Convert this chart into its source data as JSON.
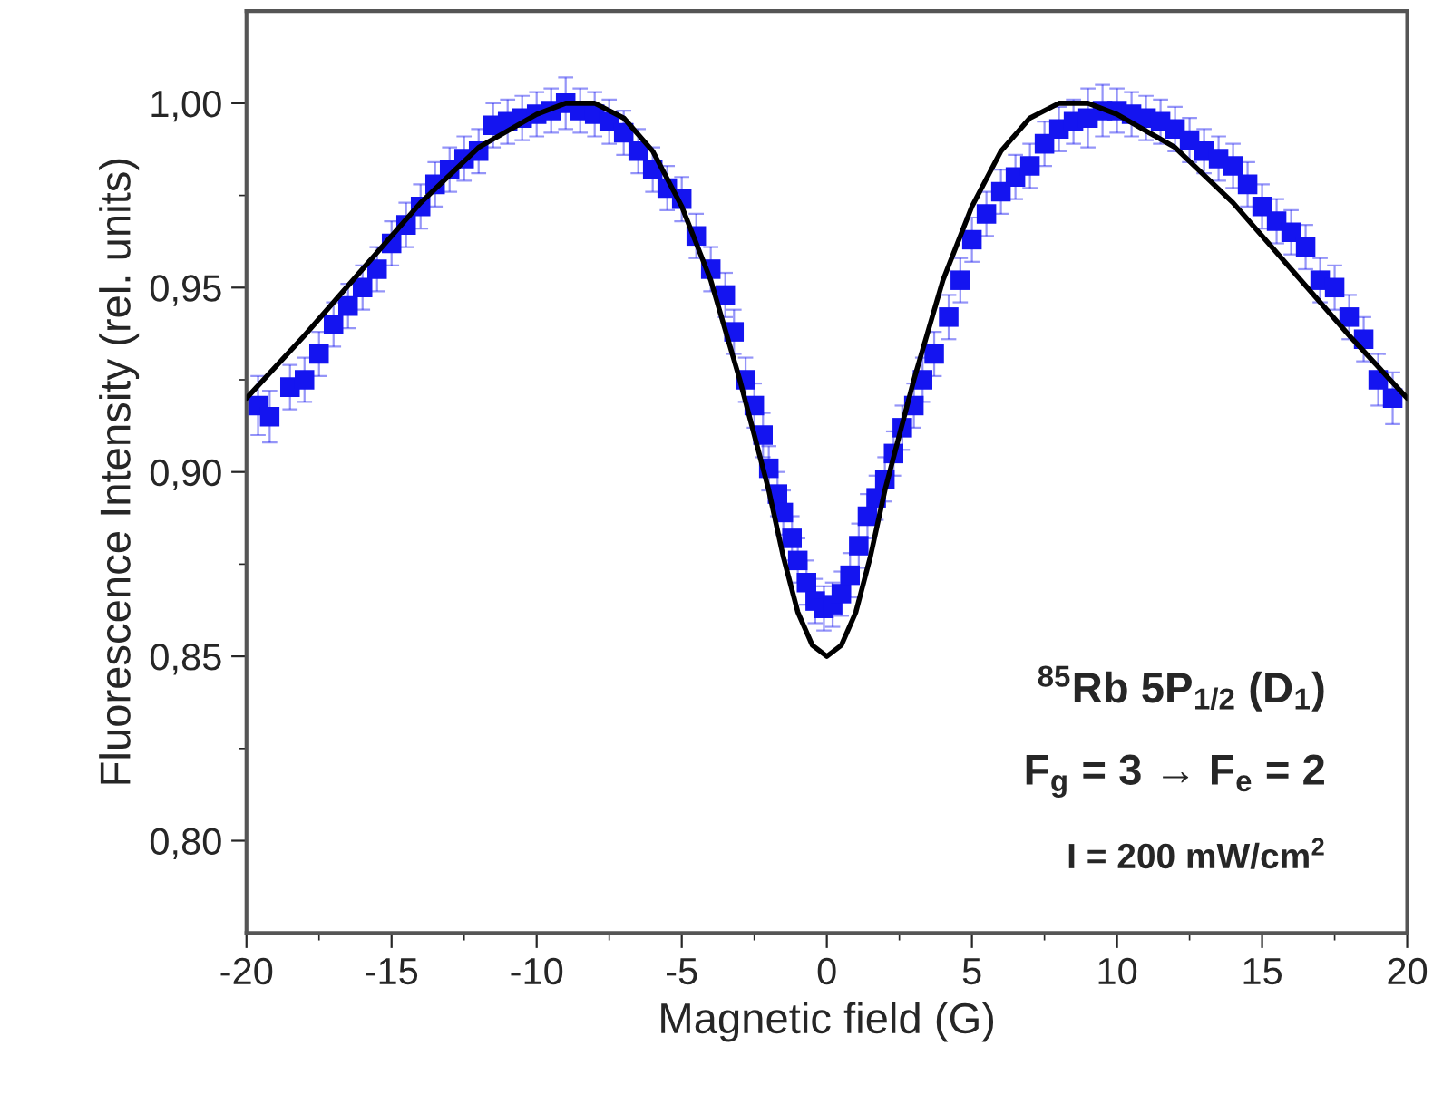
{
  "chart_data": {
    "type": "scatter",
    "xlabel": "Magnetic field (G)",
    "ylabel": "Fluorescence Intensity (rel. units)",
    "xlim": [
      -20,
      20
    ],
    "xticks": [
      -20,
      -15,
      -10,
      -5,
      0,
      5,
      10,
      15,
      20
    ],
    "ylim": [
      0.775,
      1.025
    ],
    "yticks": [
      {
        "value": 0.8,
        "label": "0,80"
      },
      {
        "value": 0.85,
        "label": "0,85"
      },
      {
        "value": 0.9,
        "label": "0,90"
      },
      {
        "value": 0.95,
        "label": "0,95"
      },
      {
        "value": 1.0,
        "label": "1,00"
      }
    ],
    "grid": false,
    "legend": false,
    "series": [
      {
        "color": "#1414f0",
        "marker": "square",
        "x": [
          -19.6,
          -19.2,
          -18.5,
          -18,
          -17.5,
          -17,
          -16.5,
          -16,
          -15.5,
          -15,
          -14.5,
          -14,
          -13.5,
          -13,
          -12.5,
          -12,
          -11.5,
          -11,
          -10.5,
          -10,
          -9.5,
          -9,
          -8.5,
          -8,
          -7.5,
          -7,
          -6.5,
          -6,
          -5.5,
          -5,
          -4.5,
          -4,
          -3.5,
          -3.2,
          -2.8,
          -2.5,
          -2.2,
          -2,
          -1.7,
          -1.5,
          -1.2,
          -1,
          -0.7,
          -0.4,
          -0.1,
          0.2,
          0.5,
          0.8,
          1.1,
          1.4,
          1.7,
          2,
          2.3,
          2.6,
          3,
          3.3,
          3.7,
          4.2,
          4.6,
          5,
          5.5,
          6,
          6.5,
          7,
          7.5,
          8,
          8.5,
          9,
          9.5,
          10,
          10.5,
          11,
          11.5,
          12,
          12.5,
          13,
          13.5,
          14,
          14.5,
          15,
          15.5,
          16,
          16.5,
          17,
          17.5,
          18,
          18.5,
          19,
          19.5
        ],
        "values": [
          0.918,
          0.915,
          0.923,
          0.925,
          0.932,
          0.94,
          0.945,
          0.95,
          0.955,
          0.962,
          0.967,
          0.972,
          0.978,
          0.982,
          0.985,
          0.987,
          0.994,
          0.995,
          0.996,
          0.997,
          0.998,
          1.0,
          0.998,
          0.997,
          0.995,
          0.992,
          0.987,
          0.982,
          0.977,
          0.974,
          0.964,
          0.955,
          0.948,
          0.938,
          0.925,
          0.918,
          0.91,
          0.901,
          0.894,
          0.889,
          0.882,
          0.876,
          0.87,
          0.865,
          0.863,
          0.864,
          0.867,
          0.872,
          0.88,
          0.888,
          0.893,
          0.898,
          0.905,
          0.912,
          0.918,
          0.925,
          0.932,
          0.942,
          0.952,
          0.963,
          0.97,
          0.976,
          0.98,
          0.983,
          0.989,
          0.993,
          0.995,
          0.996,
          0.998,
          0.998,
          0.997,
          0.996,
          0.995,
          0.993,
          0.99,
          0.987,
          0.985,
          0.983,
          0.978,
          0.972,
          0.968,
          0.965,
          0.961,
          0.952,
          0.95,
          0.942,
          0.936,
          0.925,
          0.92
        ],
        "errors": [
          0.008,
          0.007,
          0.006,
          0.006,
          0.006,
          0.006,
          0.006,
          0.006,
          0.006,
          0.006,
          0.006,
          0.006,
          0.006,
          0.006,
          0.006,
          0.006,
          0.006,
          0.006,
          0.006,
          0.006,
          0.006,
          0.007,
          0.006,
          0.006,
          0.006,
          0.006,
          0.006,
          0.006,
          0.006,
          0.006,
          0.006,
          0.006,
          0.006,
          0.006,
          0.006,
          0.006,
          0.006,
          0.006,
          0.006,
          0.006,
          0.006,
          0.006,
          0.006,
          0.006,
          0.006,
          0.006,
          0.006,
          0.006,
          0.006,
          0.006,
          0.006,
          0.006,
          0.006,
          0.006,
          0.006,
          0.006,
          0.006,
          0.006,
          0.006,
          0.006,
          0.006,
          0.006,
          0.006,
          0.006,
          0.006,
          0.006,
          0.006,
          0.008,
          0.007,
          0.006,
          0.006,
          0.006,
          0.006,
          0.006,
          0.006,
          0.006,
          0.006,
          0.006,
          0.006,
          0.006,
          0.006,
          0.006,
          0.006,
          0.006,
          0.006,
          0.006,
          0.006,
          0.007,
          0.007
        ]
      },
      {
        "type": "line",
        "color": "#000000",
        "marker": "none",
        "line_style": "solid",
        "x": [
          -20,
          -18,
          -16,
          -14,
          -12,
          -10,
          -9,
          -8,
          -7,
          -6,
          -5,
          -4,
          -3,
          -2,
          -1.5,
          -1,
          -0.5,
          0,
          0.5,
          1,
          1.5,
          2,
          3,
          4,
          5,
          6,
          7,
          8,
          9,
          10,
          12,
          14,
          16,
          18,
          20
        ],
        "values": [
          0.92,
          0.937,
          0.955,
          0.973,
          0.988,
          0.997,
          1.0,
          1.0,
          0.996,
          0.987,
          0.972,
          0.952,
          0.925,
          0.895,
          0.877,
          0.862,
          0.853,
          0.85,
          0.853,
          0.862,
          0.877,
          0.895,
          0.925,
          0.952,
          0.972,
          0.987,
          0.996,
          1.0,
          1.0,
          0.997,
          0.988,
          0.973,
          0.955,
          0.937,
          0.92
        ]
      }
    ],
    "annotations": [
      "$^{85}$Rb 5P$_{1/2}$ (D$_{1}$)",
      "F$_{g}$ = 3 → F$_{e}$ = 2",
      "I = 200 mW/cm$^{2}$"
    ]
  }
}
